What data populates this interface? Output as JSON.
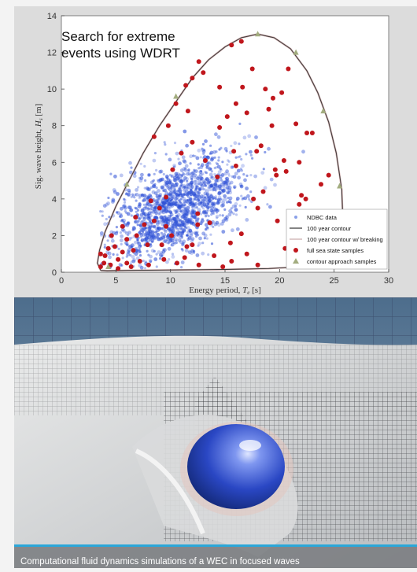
{
  "overlay": {
    "line1": "Search for extreme",
    "line2": "events using WDRT"
  },
  "caption": "Computational fluid dynamics simulations of a WEC in focused waves",
  "colors": {
    "ndbc": "#2c4fd6",
    "contour": "#333333",
    "contour_breaking": "#c9a8a8",
    "full_samples": "#c0161c",
    "contour_samples": "#a3ad7f",
    "caption_rule": "#2aa7d9"
  },
  "chart_data": {
    "type": "scatter",
    "xlabel": "Energy period, T_e [s]",
    "ylabel": "Sig. wave height, H_s [m]",
    "xlabel_main": "Energy period,",
    "xlabel_var": "T",
    "xlabel_unit": "[s]",
    "ylabel_main": "Sig. wave height,",
    "ylabel_var": "H",
    "ylabel_unit": "[m]",
    "xlim": [
      0,
      30
    ],
    "ylim": [
      0,
      14
    ],
    "xticks": [
      "0",
      "5",
      "10",
      "15",
      "20",
      "25",
      "30"
    ],
    "yticks": [
      "0",
      "2",
      "4",
      "6",
      "8",
      "10",
      "12",
      "14"
    ],
    "grid": false,
    "legend_position": "lower-right",
    "legend": [
      "NDBC data",
      "100 year contour",
      "100 year contour w/ breaking",
      "full sea state samples",
      "contour approach samples"
    ],
    "contour_100yr": [
      [
        3.6,
        0.1
      ],
      [
        3.3,
        0.5
      ],
      [
        3.5,
        1.2
      ],
      [
        4.0,
        2.2
      ],
      [
        5.0,
        3.6
      ],
      [
        6.2,
        5.0
      ],
      [
        7.5,
        6.5
      ],
      [
        9.0,
        8.0
      ],
      [
        10.5,
        9.3
      ],
      [
        12.0,
        10.6
      ],
      [
        13.5,
        11.6
      ],
      [
        15.0,
        12.3
      ],
      [
        16.5,
        12.8
      ],
      [
        18.0,
        13.0
      ],
      [
        19.5,
        12.8
      ],
      [
        21.0,
        12.2
      ],
      [
        22.5,
        11.0
      ],
      [
        23.5,
        9.8
      ],
      [
        24.5,
        8.2
      ],
      [
        25.2,
        6.5
      ],
      [
        25.7,
        4.5
      ],
      [
        25.8,
        2.8
      ],
      [
        25.3,
        1.4
      ],
      [
        24.0,
        0.6
      ],
      [
        22.0,
        0.3
      ],
      [
        19.0,
        0.2
      ],
      [
        15.0,
        0.15
      ],
      [
        10.0,
        0.12
      ],
      [
        6.0,
        0.1
      ],
      [
        4.2,
        0.08
      ],
      [
        3.6,
        0.1
      ]
    ],
    "contour_samples": [
      [
        18.0,
        13.0
      ],
      [
        21.5,
        12.0
      ],
      [
        10.5,
        9.6
      ],
      [
        24.0,
        8.8
      ],
      [
        25.5,
        4.7
      ],
      [
        6.0,
        4.8
      ],
      [
        24.8,
        0.5
      ],
      [
        4.3,
        0.3
      ]
    ],
    "full_samples": [
      [
        15.6,
        12.4
      ],
      [
        16.5,
        12.6
      ],
      [
        12.6,
        11.5
      ],
      [
        12.0,
        10.6
      ],
      [
        13.0,
        10.9
      ],
      [
        14.5,
        10.1
      ],
      [
        16.6,
        10.1
      ],
      [
        18.7,
        10.0
      ],
      [
        19.4,
        9.5
      ],
      [
        20.2,
        9.8
      ],
      [
        16.0,
        9.2
      ],
      [
        17.0,
        8.7
      ],
      [
        19.0,
        8.9
      ],
      [
        19.3,
        8.0
      ],
      [
        21.5,
        8.1
      ],
      [
        9.8,
        8.0
      ],
      [
        10.5,
        9.2
      ],
      [
        11.4,
        10.2
      ],
      [
        11.6,
        8.8
      ],
      [
        8.5,
        7.4
      ],
      [
        14.5,
        7.9
      ],
      [
        15.8,
        6.6
      ],
      [
        17.9,
        6.6
      ],
      [
        18.3,
        6.9
      ],
      [
        20.4,
        6.1
      ],
      [
        21.8,
        6.0
      ],
      [
        22.5,
        7.6
      ],
      [
        23.0,
        7.6
      ],
      [
        16.0,
        5.8
      ],
      [
        19.6,
        5.6
      ],
      [
        19.7,
        5.3
      ],
      [
        20.6,
        5.5
      ],
      [
        21.8,
        3.7
      ],
      [
        23.8,
        4.8
      ],
      [
        24.5,
        5.3
      ],
      [
        17.6,
        4.0
      ],
      [
        18.5,
        4.4
      ],
      [
        22.0,
        4.2
      ],
      [
        22.4,
        4.0
      ],
      [
        18.0,
        3.5
      ],
      [
        19.8,
        2.8
      ],
      [
        22.6,
        2.0
      ],
      [
        20.5,
        1.3
      ],
      [
        16.5,
        2.1
      ],
      [
        15.5,
        1.6
      ],
      [
        17.0,
        1.0
      ],
      [
        12.5,
        3.2
      ],
      [
        13.6,
        2.7
      ],
      [
        14.0,
        0.9
      ],
      [
        12.0,
        1.5
      ],
      [
        12.5,
        2.6
      ],
      [
        10.1,
        2.0
      ],
      [
        11.5,
        1.4
      ],
      [
        9.6,
        2.5
      ],
      [
        9.2,
        1.5
      ],
      [
        9.0,
        3.5
      ],
      [
        9.6,
        4.1
      ],
      [
        8.5,
        2.8
      ],
      [
        7.9,
        1.5
      ],
      [
        7.6,
        2.6
      ],
      [
        8.2,
        3.9
      ],
      [
        6.8,
        3.0
      ],
      [
        6.9,
        2.0
      ],
      [
        6.6,
        1.2
      ],
      [
        6.0,
        1.8
      ],
      [
        5.6,
        2.5
      ],
      [
        5.6,
        1.1
      ],
      [
        5.2,
        0.7
      ],
      [
        4.9,
        1.4
      ],
      [
        4.6,
        2.0
      ],
      [
        4.3,
        1.3
      ],
      [
        4.0,
        0.9
      ],
      [
        3.9,
        0.5
      ],
      [
        3.6,
        0.3
      ],
      [
        3.6,
        1.0
      ],
      [
        4.5,
        0.4
      ],
      [
        5.2,
        0.2
      ],
      [
        6.0,
        0.5
      ],
      [
        6.4,
        0.3
      ],
      [
        7.2,
        0.6
      ],
      [
        8.0,
        0.4
      ],
      [
        9.4,
        0.7
      ],
      [
        10.6,
        0.5
      ],
      [
        11.3,
        0.8
      ],
      [
        12.6,
        0.4
      ],
      [
        14.8,
        0.3
      ],
      [
        15.6,
        0.6
      ],
      [
        18.0,
        0.4
      ],
      [
        21.0,
        0.3
      ],
      [
        24.0,
        0.8
      ],
      [
        25.0,
        1.1
      ],
      [
        23.0,
        1.2
      ],
      [
        14.3,
        5.2
      ],
      [
        13.2,
        6.1
      ],
      [
        11.0,
        6.5
      ],
      [
        10.2,
        5.6
      ],
      [
        12.0,
        7.1
      ],
      [
        15.2,
        8.5
      ],
      [
        17.5,
        11.1
      ],
      [
        20.8,
        11.1
      ]
    ]
  }
}
